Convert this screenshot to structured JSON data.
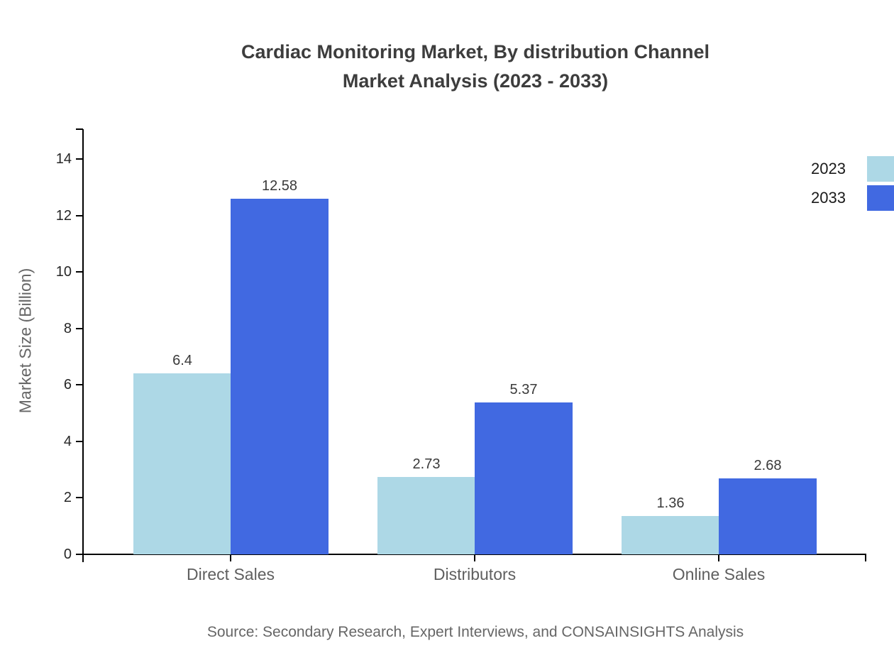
{
  "title": {
    "line1": "Cardiac Monitoring Market, By distribution Channel",
    "line2": "Market Analysis (2023 - 2033)"
  },
  "source_note": "Source: Secondary Research, Expert Interviews, and CONSAINSIGHTS Analysis",
  "chart_data": {
    "type": "bar",
    "title": "Cardiac Monitoring Market, By distribution Channel Market Analysis (2023 - 2033)",
    "categories": [
      "Direct Sales",
      "Distributors",
      "Online Sales"
    ],
    "series": [
      {
        "name": "2023",
        "color": "#ADD8E6",
        "values": [
          6.4,
          2.73,
          1.36
        ]
      },
      {
        "name": "2033",
        "color": "#4169E1",
        "values": [
          12.58,
          5.37,
          2.68
        ]
      }
    ],
    "xlabel": "",
    "ylabel": "Market Size (Billion)",
    "ylim": [
      0,
      15.1
    ],
    "y_ticks": [
      0,
      2,
      4,
      6,
      8,
      10,
      12,
      14
    ],
    "grid": false,
    "legend_position": "top-right",
    "value_labels": true,
    "axis_color": "#000000"
  }
}
